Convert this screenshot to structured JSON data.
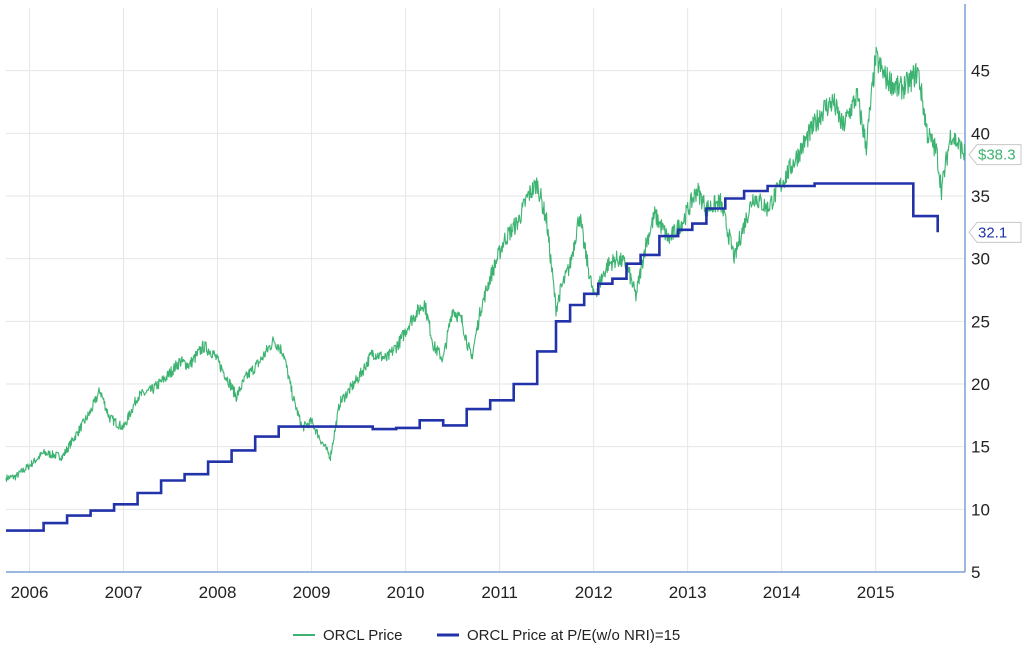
{
  "chart_data": {
    "type": "line",
    "xlabel": "",
    "ylabel": "",
    "x_ticks": [
      "2006",
      "2007",
      "2008",
      "2009",
      "2010",
      "2011",
      "2012",
      "2013",
      "2014",
      "2015"
    ],
    "y_ticks": [
      "5",
      "10",
      "15",
      "20",
      "25",
      "30",
      "35",
      "40",
      "45"
    ],
    "xlim": [
      2005.75,
      2015.95
    ],
    "ylim": [
      5,
      50
    ],
    "grid": true,
    "legend_position": "bottom-center",
    "series": [
      {
        "name": "ORCL Price",
        "color": "#3cb371",
        "x": [
          2005.75,
          2005.85,
          2006.0,
          2006.15,
          2006.35,
          2006.5,
          2006.65,
          2006.75,
          2006.85,
          2007.0,
          2007.15,
          2007.3,
          2007.45,
          2007.6,
          2007.7,
          2007.85,
          2007.95,
          2008.1,
          2008.2,
          2008.3,
          2008.45,
          2008.6,
          2008.7,
          2008.8,
          2008.9,
          2009.0,
          2009.1,
          2009.2,
          2009.3,
          2009.5,
          2009.65,
          2009.8,
          2009.95,
          2010.05,
          2010.2,
          2010.3,
          2010.4,
          2010.5,
          2010.6,
          2010.7,
          2010.8,
          2010.9,
          2011.05,
          2011.2,
          2011.3,
          2011.4,
          2011.5,
          2011.6,
          2011.65,
          2011.75,
          2011.85,
          2011.9,
          2012.0,
          2012.15,
          2012.25,
          2012.35,
          2012.45,
          2012.55,
          2012.65,
          2012.8,
          2012.95,
          2013.1,
          2013.2,
          2013.35,
          2013.5,
          2013.55,
          2013.7,
          2013.85,
          2014.0,
          2014.15,
          2014.3,
          2014.45,
          2014.55,
          2014.65,
          2014.8,
          2014.9,
          2015.0,
          2015.1,
          2015.25,
          2015.35,
          2015.45,
          2015.55,
          2015.65,
          2015.7,
          2015.8,
          2015.95
        ],
        "values": [
          12.5,
          12.6,
          13.5,
          14.5,
          14.2,
          16.0,
          17.8,
          19.5,
          17.3,
          16.5,
          19.0,
          19.5,
          20.5,
          21.8,
          21.5,
          23.0,
          22.5,
          20.5,
          19.0,
          20.5,
          21.8,
          23.5,
          22.5,
          19.0,
          16.5,
          17.0,
          15.5,
          14.2,
          18.5,
          20.5,
          22.5,
          22.0,
          23.5,
          25.0,
          26.5,
          23.0,
          22.0,
          26.0,
          25.0,
          22.0,
          26.0,
          28.5,
          31.5,
          33.0,
          35.0,
          36.0,
          33.0,
          26.0,
          27.5,
          29.5,
          33.5,
          31.0,
          27.0,
          29.5,
          30.0,
          29.5,
          27.0,
          31.0,
          33.5,
          31.5,
          33.0,
          35.5,
          34.0,
          34.5,
          30.0,
          31.5,
          35.0,
          34.0,
          36.0,
          38.0,
          40.0,
          42.0,
          42.5,
          40.5,
          43.0,
          39.0,
          46.0,
          44.5,
          43.5,
          44.0,
          45.0,
          40.0,
          38.5,
          35.5,
          40.0,
          38.3
        ]
      },
      {
        "name": "ORCL Price at P/E(w/o NRI)=15",
        "color": "#2233aa",
        "step": true,
        "x": [
          2005.75,
          2005.95,
          2006.15,
          2006.4,
          2006.65,
          2006.9,
          2007.15,
          2007.4,
          2007.65,
          2007.9,
          2008.15,
          2008.4,
          2008.65,
          2008.9,
          2009.15,
          2009.4,
          2009.65,
          2009.9,
          2010.15,
          2010.4,
          2010.65,
          2010.9,
          2011.15,
          2011.4,
          2011.6,
          2011.75,
          2011.9,
          2012.05,
          2012.2,
          2012.35,
          2012.5,
          2012.7,
          2012.9,
          2013.05,
          2013.2,
          2013.4,
          2013.6,
          2013.85,
          2014.05,
          2014.35,
          2014.7,
          2015.0,
          2015.4,
          2015.65,
          2015.66
        ],
        "values": [
          8.3,
          8.3,
          8.9,
          9.5,
          9.9,
          10.4,
          11.3,
          12.3,
          12.8,
          13.8,
          14.7,
          15.8,
          16.6,
          16.6,
          16.6,
          16.6,
          16.4,
          16.5,
          17.1,
          16.7,
          18.0,
          18.7,
          20.0,
          22.6,
          25.0,
          26.3,
          27.2,
          28.0,
          28.4,
          29.6,
          30.3,
          31.8,
          32.3,
          32.8,
          34.0,
          34.8,
          35.4,
          35.8,
          35.8,
          36.0,
          36.0,
          36.0,
          33.4,
          33.4,
          32.1
        ]
      }
    ],
    "end_labels": [
      "$38.3",
      "32.1"
    ],
    "colors": {
      "grid": "#e6e6e6",
      "axis": "#7aa0d4",
      "price_line": "#3cb371",
      "pe_line": "#2233aa"
    }
  }
}
